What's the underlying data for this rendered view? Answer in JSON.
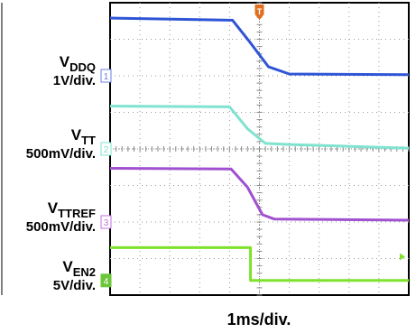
{
  "chart_data": {
    "type": "line",
    "title": "",
    "xlabel": "1ms/div.",
    "ylabel": "",
    "grid": true,
    "x_divisions": 10,
    "y_divisions": 8,
    "xlim_div": [
      0,
      10
    ],
    "ylim_div": [
      0,
      8
    ],
    "trigger_marker": "T",
    "series": [
      {
        "name": "V_DDQ",
        "label_main": "V",
        "label_sub": "DDQ",
        "scale": "1V/div.",
        "channel": "1",
        "color": "#2f55d6",
        "marker_color": "#6d7ee6",
        "ground_div": 6.0,
        "points": [
          [
            0,
            7.58
          ],
          [
            4.1,
            7.52
          ],
          [
            4.7,
            6.9
          ],
          [
            5.3,
            6.25
          ],
          [
            6.0,
            6.05
          ],
          [
            10,
            6.03
          ]
        ]
      },
      {
        "name": "V_TT",
        "label_main": "V",
        "label_sub": "TT",
        "scale": "500mV/div.",
        "channel": "2",
        "color": "#7fe3cf",
        "marker_color": "#7fe3cf",
        "ground_div": 4.0,
        "points": [
          [
            0,
            5.17
          ],
          [
            4.0,
            5.15
          ],
          [
            4.6,
            4.55
          ],
          [
            5.2,
            4.15
          ],
          [
            6.0,
            4.12
          ],
          [
            10,
            4.02
          ]
        ]
      },
      {
        "name": "V_TTREF",
        "label_main": "V",
        "label_sub": "TTREF",
        "scale": "500mV/div.",
        "channel": "3",
        "color": "#a050d0",
        "marker_color": "#c070e0",
        "ground_div": 2.0,
        "points": [
          [
            0,
            3.47
          ],
          [
            4.05,
            3.45
          ],
          [
            4.6,
            2.95
          ],
          [
            5.1,
            2.2
          ],
          [
            5.5,
            2.08
          ],
          [
            10,
            2.05
          ]
        ]
      },
      {
        "name": "V_EN2",
        "label_main": "V",
        "label_sub": "EN2",
        "scale": "5V/div.",
        "channel": "4",
        "color": "#7ee22a",
        "marker_color": "#6cc63a",
        "ground_div": 0.4,
        "points": [
          [
            0,
            1.3
          ],
          [
            4.7,
            1.3
          ],
          [
            4.7,
            0.4
          ],
          [
            10,
            0.4
          ]
        ]
      }
    ]
  }
}
